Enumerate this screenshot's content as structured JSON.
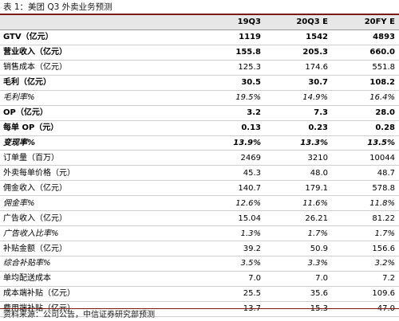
{
  "title": "表 1：美团 Q3 外卖业务预测",
  "columns": [
    "",
    "19Q3",
    "20Q3 E",
    "20FY E"
  ],
  "rows": [
    {
      "label": "GTV（亿元）",
      "v1": "1119",
      "v2": "1542",
      "v3": "4893",
      "style": "bold"
    },
    {
      "label": "营业收入（亿元）",
      "v1": "155.8",
      "v2": "205.3",
      "v3": "660.0",
      "style": "bold"
    },
    {
      "label": "销售成本（亿元）",
      "v1": "125.3",
      "v2": "174.6",
      "v3": "551.8",
      "style": "normal"
    },
    {
      "label": "毛利（亿元）",
      "v1": "30.5",
      "v2": "30.7",
      "v3": "108.2",
      "style": "bold"
    },
    {
      "label": "毛利率%",
      "v1": "19.5%",
      "v2": "14.9%",
      "v3": "16.4%",
      "style": "italic"
    },
    {
      "label": "OP（亿元）",
      "v1": "3.2",
      "v2": "7.3",
      "v3": "28.0",
      "style": "bold"
    },
    {
      "label": "每单 OP（元）",
      "v1": "0.13",
      "v2": "0.23",
      "v3": "0.28",
      "style": "bold"
    },
    {
      "label": "变现率%",
      "v1": "13.9%",
      "v2": "13.3%",
      "v3": "13.5%",
      "style": "bold italic"
    },
    {
      "label": "订单量（百万）",
      "v1": "2469",
      "v2": "3210",
      "v3": "10044",
      "style": "normal"
    },
    {
      "label": "外卖每单价格（元）",
      "v1": "45.3",
      "v2": "48.0",
      "v3": "48.7",
      "style": "normal"
    },
    {
      "label": "佣金收入（亿元）",
      "v1": "140.7",
      "v2": "179.1",
      "v3": "578.8",
      "style": "normal"
    },
    {
      "label": "佣金率%",
      "v1": "12.6%",
      "v2": "11.6%",
      "v3": "11.8%",
      "style": "italic"
    },
    {
      "label": "广告收入（亿元）",
      "v1": "15.04",
      "v2": "26.21",
      "v3": "81.22",
      "style": "normal"
    },
    {
      "label": "广告收入比率%",
      "v1": "1.3%",
      "v2": "1.7%",
      "v3": "1.7%",
      "style": "italic"
    },
    {
      "label": "补贴金额（亿元）",
      "v1": "39.2",
      "v2": "50.9",
      "v3": "156.6",
      "style": "normal"
    },
    {
      "label": "综合补贴率%",
      "v1": "3.5%",
      "v2": "3.3%",
      "v3": "3.2%",
      "style": "italic"
    },
    {
      "label": "单均配送成本",
      "v1": "7.0",
      "v2": "7.0",
      "v3": "7.2",
      "style": "normal"
    },
    {
      "label": "成本端补贴（亿元）",
      "v1": "25.5",
      "v2": "35.6",
      "v3": "109.6",
      "style": "normal"
    },
    {
      "label": "费用端补贴（亿元）",
      "v1": "13.7",
      "v2": "15.3",
      "v3": "47.0",
      "style": "normal"
    }
  ],
  "source": "资料来源：公司公告，中信证券研究部预测"
}
